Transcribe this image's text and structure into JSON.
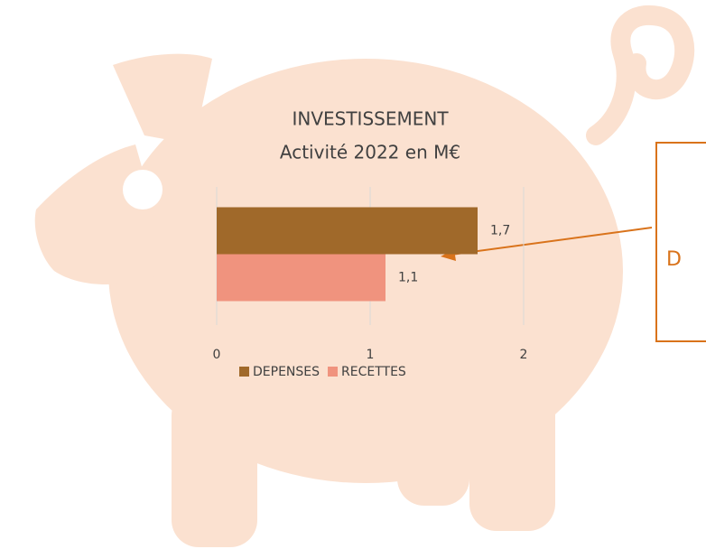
{
  "chart_data": {
    "type": "bar",
    "orientation": "horizontal",
    "title": "INVESTISSEMENT",
    "subtitle": "Activité 2022 en M€",
    "categories": [
      null
    ],
    "series": [
      {
        "name": "DEPENSES",
        "color": "#a0692a",
        "values": [
          1.7
        ],
        "value_labels": [
          "1,7"
        ]
      },
      {
        "name": "RECETTES",
        "color": "#f0937e",
        "values": [
          1.1
        ],
        "value_labels": [
          "1,1"
        ]
      }
    ],
    "xlim": [
      0,
      2
    ],
    "xticks": [
      0,
      1,
      2
    ],
    "grid": true,
    "legend": "bottom",
    "annotation": "D"
  }
}
